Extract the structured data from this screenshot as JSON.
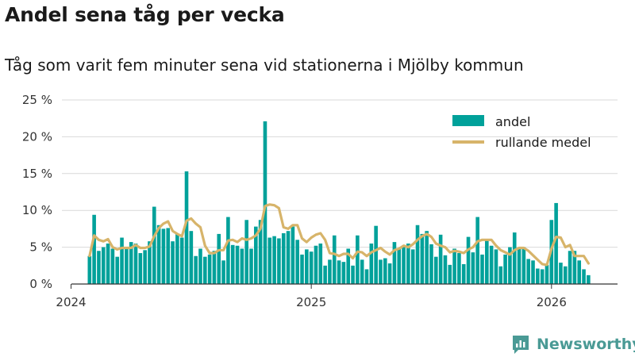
{
  "header": {
    "title": "Andel sena tåg per vecka",
    "subtitle": "Tåg som varit fem minuter sena vid stationerna i Mjölby kommun"
  },
  "branding": {
    "name": "Newsworthy",
    "color": "#4a9a95"
  },
  "chart_data": {
    "type": "bar",
    "title": "Andel sena tåg per vecka",
    "subtitle": "Tåg som varit fem minuter sena vid stationerna i Mjölby kommun",
    "xlabel": "",
    "ylabel": "",
    "ylim": [
      0,
      25
    ],
    "y_ticks": [
      0,
      5,
      10,
      15,
      20,
      25
    ],
    "y_tick_labels": [
      "0 %",
      "5 %",
      "10 %",
      "15 %",
      "20 %",
      "25 %"
    ],
    "x_tick_labels": [
      {
        "label": "2024",
        "week_index": -4
      },
      {
        "label": "2025",
        "week_index": 48
      },
      {
        "label": "2026",
        "week_index": 100
      }
    ],
    "grid": true,
    "legend_position": "top-right",
    "bar_color": "#00a19a",
    "line_color": "#d7b46a",
    "week_start": "2024-02",
    "series": [
      {
        "name": "andel",
        "kind": "bar",
        "values": [
          3.8,
          9.4,
          4.5,
          5.0,
          5.5,
          4.8,
          3.7,
          6.3,
          5.0,
          5.7,
          5.5,
          4.2,
          4.6,
          5.8,
          10.5,
          8.0,
          7.5,
          7.6,
          5.8,
          6.8,
          6.3,
          15.3,
          7.2,
          3.8,
          4.8,
          3.7,
          4.0,
          4.5,
          6.8,
          3.2,
          9.1,
          5.3,
          5.2,
          4.8,
          8.7,
          4.8,
          7.8,
          8.7,
          22.1,
          6.3,
          6.5,
          6.2,
          6.9,
          7.2,
          7.8,
          6.0,
          4.0,
          4.7,
          4.4,
          5.2,
          5.5,
          2.5,
          3.3,
          6.6,
          3.2,
          3.0,
          4.8,
          2.5,
          6.6,
          3.3,
          2.0,
          5.5,
          7.9,
          3.3,
          3.5,
          2.8,
          5.7,
          4.8,
          5.2,
          5.5,
          4.7,
          8.0,
          6.8,
          7.2,
          5.4,
          3.7,
          6.7,
          3.9,
          2.6,
          4.8,
          4.2,
          2.7,
          6.4,
          4.3,
          9.1,
          4.0,
          6.1,
          5.2,
          4.7,
          2.4,
          4.0,
          5.0,
          7.0,
          4.8,
          5.0,
          3.4,
          3.2,
          2.1,
          2.0,
          2.6,
          8.7,
          11.0,
          2.9,
          2.4,
          4.5,
          4.5,
          3.2,
          2.0,
          1.2
        ]
      },
      {
        "name": "rullande medel",
        "kind": "line",
        "values": [
          3.8,
          6.6,
          6.0,
          5.8,
          6.1,
          5.0,
          4.7,
          4.9,
          4.9,
          4.9,
          5.3,
          4.9,
          4.9,
          5.1,
          6.5,
          7.6,
          8.2,
          8.5,
          7.2,
          6.8,
          6.5,
          8.6,
          8.9,
          8.2,
          7.7,
          5.2,
          4.2,
          4.2,
          4.6,
          4.6,
          5.9,
          6.0,
          5.7,
          6.2,
          6.0,
          6.2,
          6.6,
          7.5,
          10.6,
          10.8,
          10.7,
          10.3,
          7.7,
          7.5,
          8.0,
          8.0,
          6.2,
          5.7,
          6.3,
          6.7,
          6.9,
          6.0,
          4.2,
          4.1,
          3.8,
          4.1,
          4.1,
          3.5,
          4.4,
          4.3,
          3.8,
          4.3,
          4.6,
          4.9,
          4.4,
          4.0,
          4.6,
          4.8,
          5.2,
          5.0,
          5.4,
          6.0,
          6.5,
          6.8,
          6.4,
          5.5,
          5.2,
          5.0,
          4.3,
          4.5,
          4.4,
          4.2,
          4.7,
          5.0,
          5.8,
          6.0,
          6.0,
          6.0,
          5.2,
          4.6,
          4.3,
          4.0,
          4.6,
          4.9,
          4.9,
          4.5,
          3.9,
          3.3,
          2.7,
          2.6,
          4.8,
          6.4,
          6.3,
          5.0,
          5.3,
          3.8,
          3.8,
          3.8,
          2.8
        ]
      }
    ]
  }
}
